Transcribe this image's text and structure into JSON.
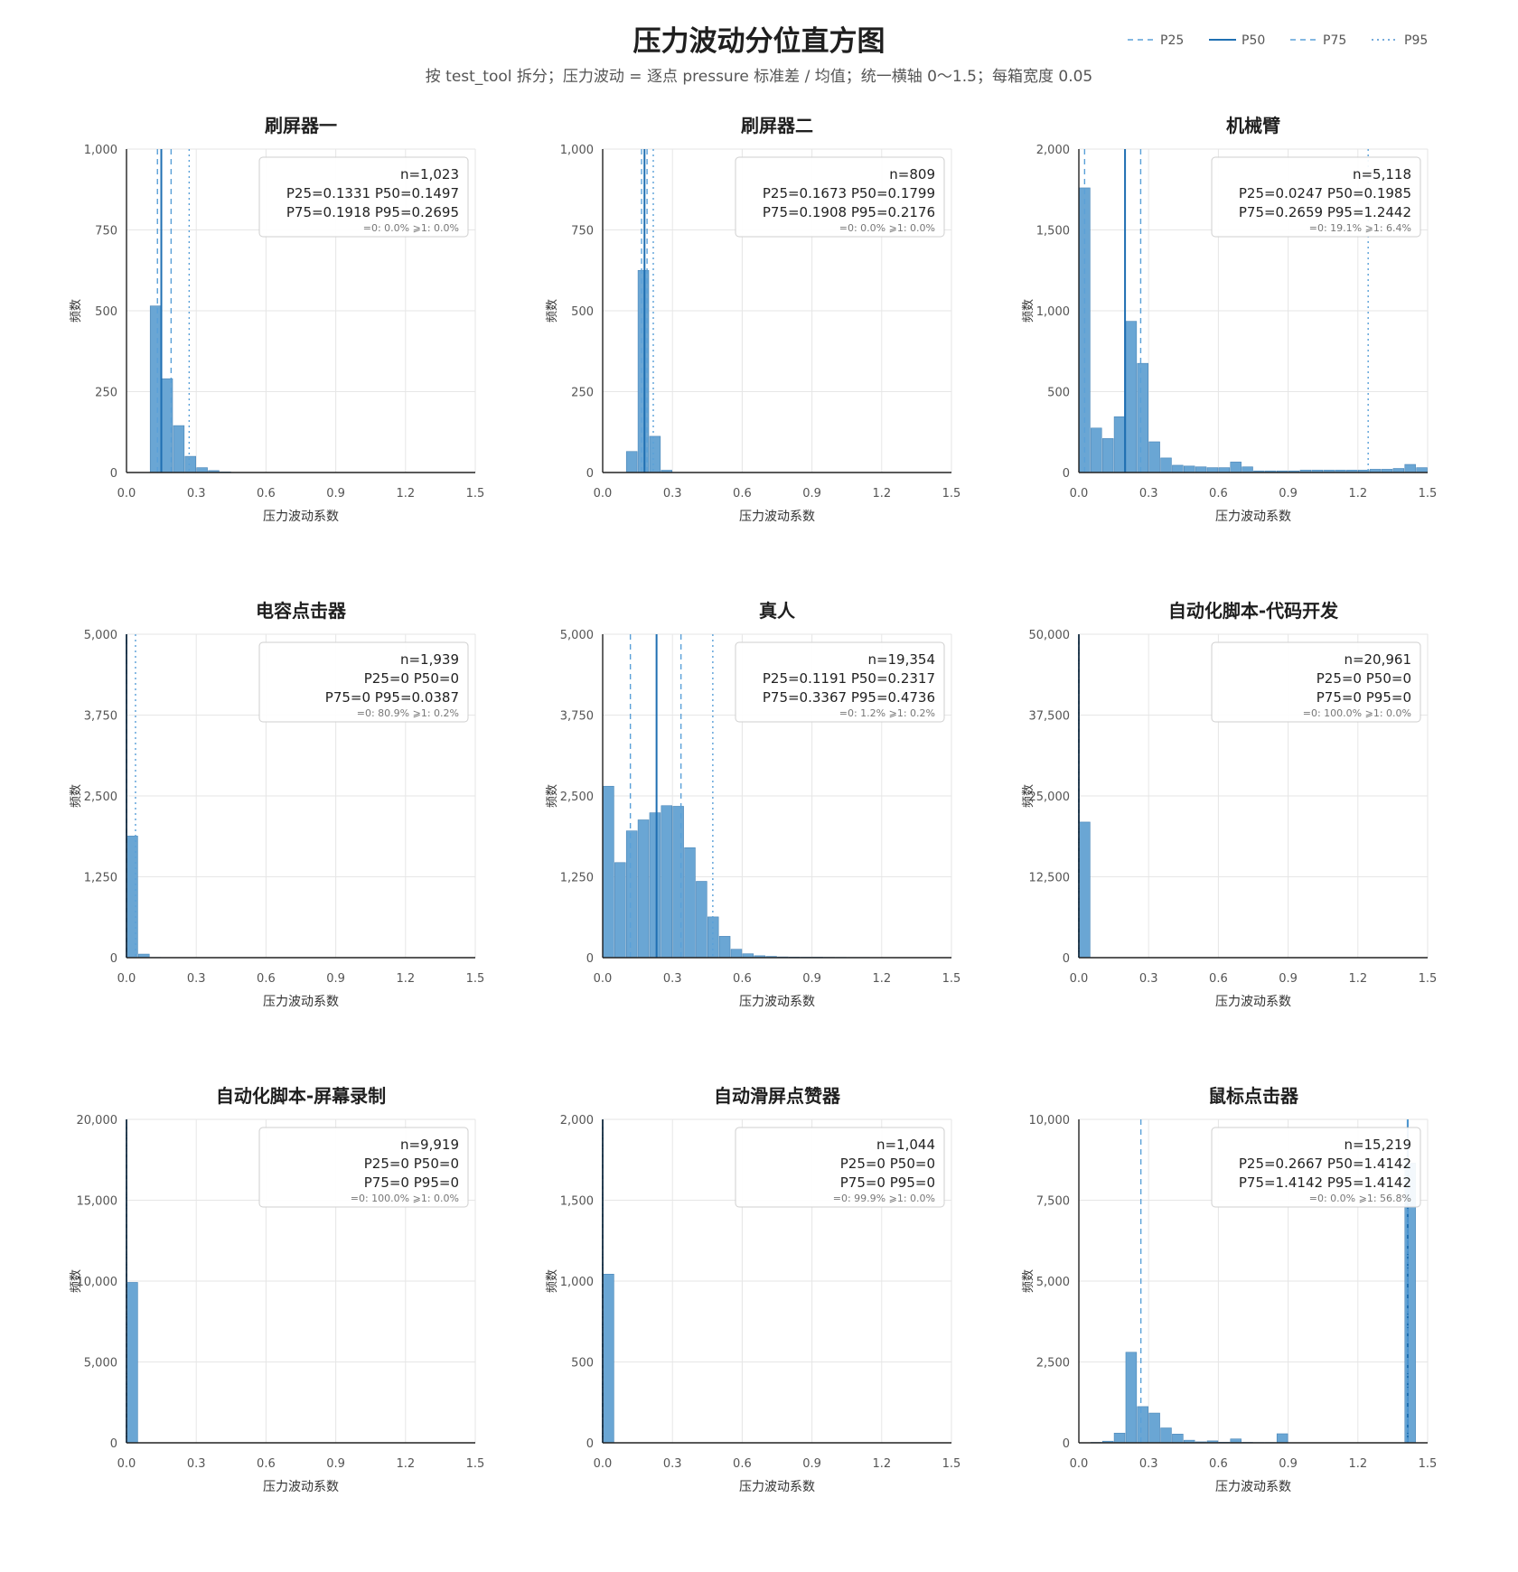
{
  "title": "压力波动分位直方图",
  "subtitle": "按 test_tool 拆分；压力波动 = 逐点 pressure 标准差 / 均值；统一横轴 0～1.5；每箱宽度 0.05",
  "legend": {
    "placement": "top-right",
    "items": [
      {
        "name": "P25",
        "style": "dashed",
        "color": "#5aa0d8"
      },
      {
        "name": "P50",
        "style": "solid",
        "color": "#1f6fb2"
      },
      {
        "name": "P75",
        "style": "dashed",
        "color": "#5aa0d8"
      },
      {
        "name": "P95",
        "style": "dotted",
        "color": "#4a90d0"
      }
    ]
  },
  "colors": {
    "bar": "#6aa6d4",
    "bar_edge": "#4a86b8",
    "grid": "#e6e6e6",
    "axis": "#222222",
    "p50": "#1f6fb2",
    "pq": "#5aa0d8"
  },
  "chart_data": [
    {
      "type": "bar",
      "title": "刷屏器一",
      "xlabel": "压力波动系数",
      "ylabel": "频数",
      "xlim": [
        0,
        1.5
      ],
      "ylim": [
        0,
        1000
      ],
      "bin_width": 0.05,
      "xticks": [
        "0.0",
        "0.3",
        "0.6",
        "0.9",
        "1.2",
        "1.5"
      ],
      "yticks": [
        "0",
        "250",
        "500",
        "750",
        "1,000"
      ],
      "bins": [
        0.1,
        0.15,
        0.2,
        0.25,
        0.3,
        0.35,
        0.4
      ],
      "values": [
        515,
        290,
        145,
        50,
        15,
        6,
        2
      ],
      "percentiles": {
        "P25": 0.1331,
        "P50": 0.1497,
        "P75": 0.1918,
        "P95": 0.2695
      },
      "annotation": [
        "n=1,023",
        "P25=0.1331 P50=0.1497",
        "P75=0.1918 P95=0.2695",
        "=0: 0.0%  ⩾1: 0.0%"
      ]
    },
    {
      "type": "bar",
      "title": "刷屏器二",
      "xlabel": "压力波动系数",
      "ylabel": "频数",
      "xlim": [
        0,
        1.5
      ],
      "ylim": [
        0,
        1000
      ],
      "bin_width": 0.05,
      "xticks": [
        "0.0",
        "0.3",
        "0.6",
        "0.9",
        "1.2",
        "1.5"
      ],
      "yticks": [
        "0",
        "250",
        "500",
        "750",
        "1,000"
      ],
      "bins": [
        0.1,
        0.15,
        0.2,
        0.25
      ],
      "values": [
        65,
        625,
        112,
        7
      ],
      "percentiles": {
        "P25": 0.1673,
        "P50": 0.1799,
        "P75": 0.1908,
        "P95": 0.2176
      },
      "annotation": [
        "n=809",
        "P25=0.1673 P50=0.1799",
        "P75=0.1908 P95=0.2176",
        "=0: 0.0%  ⩾1: 0.0%"
      ]
    },
    {
      "type": "bar",
      "title": "机械臂",
      "xlabel": "压力波动系数",
      "ylabel": "频数",
      "xlim": [
        0,
        1.5
      ],
      "ylim": [
        0,
        2000
      ],
      "bin_width": 0.05,
      "xticks": [
        "0.0",
        "0.3",
        "0.6",
        "0.9",
        "1.2",
        "1.5"
      ],
      "yticks": [
        "0",
        "500",
        "1,000",
        "1,500",
        "2,000"
      ],
      "bins": [
        0.0,
        0.05,
        0.1,
        0.15,
        0.2,
        0.25,
        0.3,
        0.35,
        0.4,
        0.45,
        0.5,
        0.55,
        0.6,
        0.65,
        0.7,
        0.75,
        0.8,
        0.85,
        0.9,
        0.95,
        1.0,
        1.05,
        1.1,
        1.15,
        1.2,
        1.25,
        1.3,
        1.35,
        1.4,
        1.45
      ],
      "values": [
        1760,
        275,
        210,
        345,
        935,
        675,
        190,
        90,
        45,
        40,
        35,
        30,
        30,
        65,
        35,
        10,
        10,
        10,
        10,
        15,
        15,
        15,
        15,
        15,
        15,
        20,
        20,
        25,
        50,
        30
      ],
      "percentiles": {
        "P25": 0.0247,
        "P50": 0.1985,
        "P75": 0.2659,
        "P95": 1.2442
      },
      "annotation": [
        "n=5,118",
        "P25=0.0247 P50=0.1985",
        "P75=0.2659 P95=1.2442",
        "=0: 19.1%  ⩾1: 6.4%"
      ]
    },
    {
      "type": "bar",
      "title": "电容点击器",
      "xlabel": "压力波动系数",
      "ylabel": "频数",
      "xlim": [
        0,
        1.5
      ],
      "ylim": [
        0,
        5000
      ],
      "bin_width": 0.05,
      "xticks": [
        "0.0",
        "0.3",
        "0.6",
        "0.9",
        "1.2",
        "1.5"
      ],
      "yticks": [
        "0",
        "1,250",
        "2,500",
        "3,750",
        "5,000"
      ],
      "bins": [
        0.0,
        0.05,
        0.1
      ],
      "values": [
        1880,
        55,
        4
      ],
      "percentiles": {
        "P25": 0,
        "P50": 0,
        "P75": 0,
        "P95": 0.0387
      },
      "annotation": [
        "n=1,939",
        "P25=0 P50=0",
        "P75=0 P95=0.0387",
        "=0: 80.9%  ⩾1: 0.2%"
      ]
    },
    {
      "type": "bar",
      "title": "真人",
      "xlabel": "压力波动系数",
      "ylabel": "频数",
      "xlim": [
        0,
        1.5
      ],
      "ylim": [
        0,
        5000
      ],
      "bin_width": 0.05,
      "xticks": [
        "0.0",
        "0.3",
        "0.6",
        "0.9",
        "1.2",
        "1.5"
      ],
      "yticks": [
        "0",
        "1,250",
        "2,500",
        "3,750",
        "5,000"
      ],
      "bins": [
        0.0,
        0.05,
        0.1,
        0.15,
        0.2,
        0.25,
        0.3,
        0.35,
        0.4,
        0.45,
        0.5,
        0.55,
        0.6,
        0.65,
        0.7,
        0.75,
        0.8,
        0.85,
        0.9,
        0.95,
        1.0,
        1.05,
        1.1,
        1.15,
        1.2,
        1.25
      ],
      "values": [
        2650,
        1470,
        1960,
        2130,
        2240,
        2350,
        2340,
        1700,
        1180,
        630,
        330,
        130,
        60,
        30,
        20,
        12,
        10,
        8,
        8,
        6,
        5,
        4,
        4,
        3,
        3,
        2
      ],
      "percentiles": {
        "P25": 0.1191,
        "P50": 0.2317,
        "P75": 0.3367,
        "P95": 0.4736
      },
      "annotation": [
        "n=19,354",
        "P25=0.1191 P50=0.2317",
        "P75=0.3367 P95=0.4736",
        "=0: 1.2%  ⩾1: 0.2%"
      ]
    },
    {
      "type": "bar",
      "title": "自动化脚本-代码开发",
      "xlabel": "压力波动系数",
      "ylabel": "频数",
      "xlim": [
        0,
        1.5
      ],
      "ylim": [
        0,
        50000
      ],
      "bin_width": 0.05,
      "xticks": [
        "0.0",
        "0.3",
        "0.6",
        "0.9",
        "1.2",
        "1.5"
      ],
      "yticks": [
        "0",
        "12,500",
        "25,000",
        "37,500",
        "50,000"
      ],
      "bins": [
        0.0
      ],
      "values": [
        20961
      ],
      "percentiles": {
        "P25": 0,
        "P50": 0,
        "P75": 0,
        "P95": 0
      },
      "annotation": [
        "n=20,961",
        "P25=0 P50=0",
        "P75=0 P95=0",
        "=0: 100.0%  ⩾1: 0.0%"
      ]
    },
    {
      "type": "bar",
      "title": "自动化脚本-屏幕录制",
      "xlabel": "压力波动系数",
      "ylabel": "频数",
      "xlim": [
        0,
        1.5
      ],
      "ylim": [
        0,
        20000
      ],
      "bin_width": 0.05,
      "xticks": [
        "0.0",
        "0.3",
        "0.6",
        "0.9",
        "1.2",
        "1.5"
      ],
      "yticks": [
        "0",
        "5,000",
        "10,000",
        "15,000",
        "20,000"
      ],
      "bins": [
        0.0
      ],
      "values": [
        9919
      ],
      "percentiles": {
        "P25": 0,
        "P50": 0,
        "P75": 0,
        "P95": 0
      },
      "annotation": [
        "n=9,919",
        "P25=0 P50=0",
        "P75=0 P95=0",
        "=0: 100.0%  ⩾1: 0.0%"
      ]
    },
    {
      "type": "bar",
      "title": "自动滑屏点赞器",
      "xlabel": "压力波动系数",
      "ylabel": "频数",
      "xlim": [
        0,
        1.5
      ],
      "ylim": [
        0,
        2000
      ],
      "bin_width": 0.05,
      "xticks": [
        "0.0",
        "0.3",
        "0.6",
        "0.9",
        "1.2",
        "1.5"
      ],
      "yticks": [
        "0",
        "500",
        "1,000",
        "1,500",
        "2,000"
      ],
      "bins": [
        0.0
      ],
      "values": [
        1043
      ],
      "percentiles": {
        "P25": 0,
        "P50": 0,
        "P75": 0,
        "P95": 0
      },
      "annotation": [
        "n=1,044",
        "P25=0 P50=0",
        "P75=0 P95=0",
        "=0: 99.9%  ⩾1: 0.0%"
      ]
    },
    {
      "type": "bar",
      "title": "鼠标点击器",
      "xlabel": "压力波动系数",
      "ylabel": "频数",
      "xlim": [
        0,
        1.5
      ],
      "ylim": [
        0,
        10000
      ],
      "bin_width": 0.05,
      "xticks": [
        "0.0",
        "0.3",
        "0.6",
        "0.9",
        "1.2",
        "1.5"
      ],
      "yticks": [
        "0",
        "2,500",
        "5,000",
        "7,500",
        "10,000"
      ],
      "bins": [
        0.05,
        0.1,
        0.15,
        0.2,
        0.25,
        0.3,
        0.35,
        0.4,
        0.45,
        0.5,
        0.55,
        0.6,
        0.65,
        0.7,
        0.75,
        0.8,
        0.85,
        1.4
      ],
      "values": [
        15,
        50,
        300,
        2800,
        1120,
        920,
        460,
        270,
        80,
        30,
        60,
        20,
        120,
        15,
        10,
        10,
        280,
        8650
      ],
      "percentiles": {
        "P25": 0.2667,
        "P50": 1.4142,
        "P75": 1.4142,
        "P95": 1.4142
      },
      "annotation": [
        "n=15,219",
        "P25=0.2667 P50=1.4142",
        "P75=1.4142 P95=1.4142",
        "=0: 0.0%  ⩾1: 56.8%"
      ]
    }
  ]
}
